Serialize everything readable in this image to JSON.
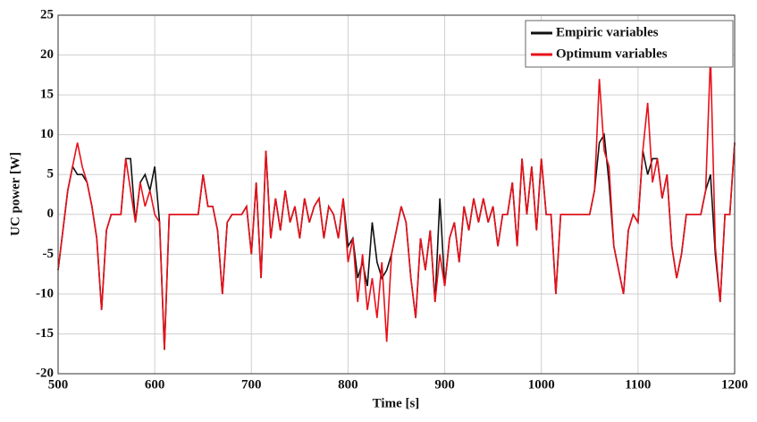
{
  "chart_data": {
    "type": "line",
    "xlabel": "Time [s]",
    "ylabel": "UC power [W]",
    "x": [
      500,
      505,
      510,
      515,
      520,
      525,
      530,
      535,
      540,
      545,
      550,
      555,
      560,
      565,
      570,
      575,
      580,
      585,
      590,
      595,
      600,
      605,
      610,
      615,
      620,
      625,
      630,
      635,
      640,
      645,
      650,
      655,
      660,
      665,
      670,
      675,
      680,
      685,
      690,
      695,
      700,
      705,
      710,
      715,
      720,
      725,
      730,
      735,
      740,
      745,
      750,
      755,
      760,
      765,
      770,
      775,
      780,
      785,
      790,
      795,
      800,
      805,
      810,
      815,
      820,
      825,
      830,
      835,
      840,
      845,
      850,
      855,
      860,
      865,
      870,
      875,
      880,
      885,
      890,
      895,
      900,
      905,
      910,
      915,
      920,
      925,
      930,
      935,
      940,
      945,
      950,
      955,
      960,
      965,
      970,
      975,
      980,
      985,
      990,
      995,
      1000,
      1005,
      1010,
      1015,
      1020,
      1025,
      1030,
      1035,
      1040,
      1045,
      1050,
      1055,
      1060,
      1065,
      1070,
      1075,
      1080,
      1085,
      1090,
      1095,
      1100,
      1105,
      1110,
      1115,
      1120,
      1125,
      1130,
      1135,
      1140,
      1145,
      1150,
      1155,
      1160,
      1165,
      1170,
      1175,
      1180,
      1185,
      1190,
      1195,
      1200
    ],
    "series": [
      {
        "name": "Empiric variables",
        "color": "#111111",
        "values": [
          -7,
          -2,
          3,
          6,
          5,
          5,
          4,
          1,
          -3,
          -12,
          -2,
          0,
          0,
          0,
          7,
          7,
          -1,
          4,
          5,
          3,
          6,
          -1,
          -17,
          0,
          0,
          0,
          0,
          0,
          0,
          0,
          5,
          1,
          1,
          -2,
          -10,
          -1,
          0,
          0,
          0,
          1,
          -5,
          4,
          -8,
          8,
          -3,
          2,
          -2,
          3,
          -1,
          1,
          -3,
          2,
          -1,
          1,
          2,
          -3,
          1,
          0,
          -3,
          2,
          -4,
          -3,
          -8,
          -6,
          -9,
          -1,
          -6,
          -8,
          -7,
          -5,
          -2,
          1,
          -1,
          -8,
          -13,
          -3,
          -7,
          -2,
          -11,
          2,
          -9,
          -3,
          -1,
          -6,
          1,
          -2,
          2,
          -1,
          2,
          -1,
          1,
          -4,
          0,
          0,
          4,
          -4,
          7,
          0,
          6,
          -2,
          7,
          0,
          0,
          -10,
          0,
          0,
          0,
          0,
          0,
          0,
          0,
          3,
          9,
          10,
          4,
          -4,
          -7,
          -10,
          -2,
          0,
          -1,
          8,
          5,
          7,
          7,
          2,
          5,
          -4,
          -8,
          -5,
          0,
          0,
          0,
          0,
          3,
          5,
          -5,
          -11,
          0,
          0,
          9
        ]
      },
      {
        "name": "Optimum variables",
        "color": "#e8101a",
        "values": [
          -7,
          -2,
          3,
          6,
          9,
          6,
          4,
          1,
          -3,
          -12,
          -2,
          0,
          0,
          0,
          7,
          3,
          -1,
          4,
          1,
          3,
          0,
          -1,
          -17,
          0,
          0,
          0,
          0,
          0,
          0,
          0,
          5,
          1,
          1,
          -2,
          -10,
          -1,
          0,
          0,
          0,
          1,
          -5,
          4,
          -8,
          8,
          -3,
          2,
          -2,
          3,
          -1,
          1,
          -3,
          2,
          -1,
          1,
          2,
          -3,
          1,
          0,
          -3,
          2,
          -6,
          -3,
          -11,
          -5,
          -12,
          -8,
          -13,
          -6,
          -16,
          -5,
          -2,
          1,
          -1,
          -8,
          -13,
          -3,
          -7,
          -2,
          -11,
          -5,
          -9,
          -3,
          -1,
          -6,
          1,
          -2,
          2,
          -1,
          2,
          -1,
          1,
          -4,
          0,
          0,
          4,
          -4,
          7,
          0,
          6,
          -2,
          7,
          0,
          0,
          -10,
          0,
          0,
          0,
          0,
          0,
          0,
          0,
          3,
          17,
          8,
          6,
          -4,
          -7,
          -10,
          -2,
          0,
          -1,
          8,
          14,
          4,
          7,
          2,
          5,
          -4,
          -8,
          -5,
          0,
          0,
          0,
          0,
          3,
          20,
          -4,
          -11,
          0,
          0,
          9
        ]
      }
    ],
    "xlim": [
      500,
      1200
    ],
    "xticks": [
      500,
      600,
      700,
      800,
      900,
      1000,
      1100,
      1200
    ],
    "ylim": [
      -20,
      25
    ],
    "yticks": [
      -20,
      -15,
      -10,
      -5,
      0,
      5,
      10,
      15,
      20,
      25
    ],
    "grid": true,
    "legend": "upper right"
  }
}
